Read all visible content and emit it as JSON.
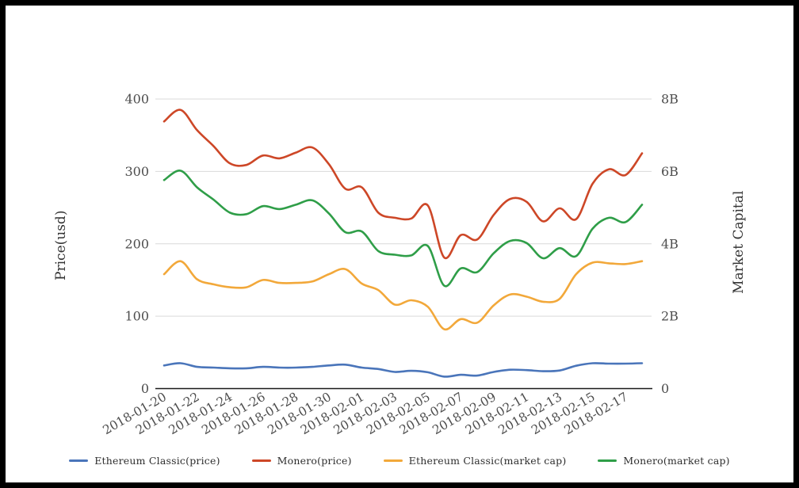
{
  "chart_data": {
    "type": "line",
    "smooth": true,
    "title": "",
    "x": [
      "2018-01-20",
      "2018-01-21",
      "2018-01-22",
      "2018-01-23",
      "2018-01-24",
      "2018-01-25",
      "2018-01-26",
      "2018-01-27",
      "2018-01-28",
      "2018-01-29",
      "2018-01-30",
      "2018-01-31",
      "2018-02-01",
      "2018-02-02",
      "2018-02-03",
      "2018-02-04",
      "2018-02-05",
      "2018-02-06",
      "2018-02-07",
      "2018-02-08",
      "2018-02-09",
      "2018-02-10",
      "2018-02-11",
      "2018-02-12",
      "2018-02-13",
      "2018-02-14",
      "2018-02-15",
      "2018-02-16",
      "2018-02-17",
      "2018-02-18"
    ],
    "x_tick_labels": [
      "2018-01-20",
      "2018-01-22",
      "2018-01-24",
      "2018-01-26",
      "2018-01-28",
      "2018-01-30",
      "2018-02-01",
      "2018-02-03",
      "2018-02-05",
      "2018-02-07",
      "2018-02-09",
      "2018-02-11",
      "2018-02-13",
      "2018-02-15",
      "2018-02-17"
    ],
    "series": [
      {
        "name": "Ethereum Classic(price)",
        "axis": "left",
        "color": "#4a75ba",
        "values": [
          32,
          35,
          30,
          29,
          28,
          28,
          30,
          29,
          29,
          30,
          32,
          33,
          29,
          27,
          23,
          24.5,
          22.5,
          16.5,
          19,
          18,
          23,
          26,
          25.5,
          24,
          25,
          31.5,
          35,
          34.5,
          34.5,
          35
        ]
      },
      {
        "name": "Monero(price)",
        "axis": "left",
        "color": "#cd4727",
        "values": [
          369,
          385,
          357,
          335,
          311,
          309,
          322,
          318,
          326,
          333,
          310,
          276,
          278,
          243,
          236,
          235,
          253,
          181,
          212,
          206,
          240,
          262,
          258,
          231,
          249,
          234,
          283,
          303,
          295,
          325
        ]
      },
      {
        "name": "Ethereum Classic(market cap)",
        "axis": "right",
        "color": "#f2a83a",
        "values": [
          3.16,
          3.52,
          3.02,
          2.88,
          2.8,
          2.8,
          3.0,
          2.92,
          2.92,
          2.96,
          3.16,
          3.3,
          2.9,
          2.72,
          2.32,
          2.44,
          2.26,
          1.64,
          1.92,
          1.82,
          2.3,
          2.6,
          2.54,
          2.4,
          2.48,
          3.16,
          3.48,
          3.46,
          3.44,
          3.52
        ]
      },
      {
        "name": "Monero(market cap)",
        "axis": "right",
        "color": "#2f9e48",
        "values": [
          5.76,
          6.02,
          5.56,
          5.22,
          4.86,
          4.82,
          5.04,
          4.96,
          5.08,
          5.2,
          4.84,
          4.32,
          4.34,
          3.8,
          3.7,
          3.68,
          3.94,
          2.84,
          3.32,
          3.22,
          3.74,
          4.08,
          4.02,
          3.6,
          3.88,
          3.66,
          4.42,
          4.72,
          4.6,
          5.08
        ]
      }
    ],
    "left_axis": {
      "label": "Price(usd)",
      "min": 0,
      "max": 400,
      "tick_labels": [
        "0",
        "100",
        "200",
        "300",
        "400"
      ]
    },
    "right_axis": {
      "label": "Market Capital",
      "min": 0,
      "max": 8,
      "tick_labels": [
        "0",
        "2B",
        "4B",
        "6B",
        "8B"
      ]
    },
    "grid": true,
    "legend_position": "bottom",
    "style": {
      "background": "#ffffff",
      "frame_color": "#000000",
      "gridline_color": "#d9d9d9",
      "axis_line_color": "#1a1a1a",
      "tick_text_color": "#4d4d4d",
      "axis_title_color": "#333333",
      "legend_text_color": "#2e2e2e"
    }
  }
}
